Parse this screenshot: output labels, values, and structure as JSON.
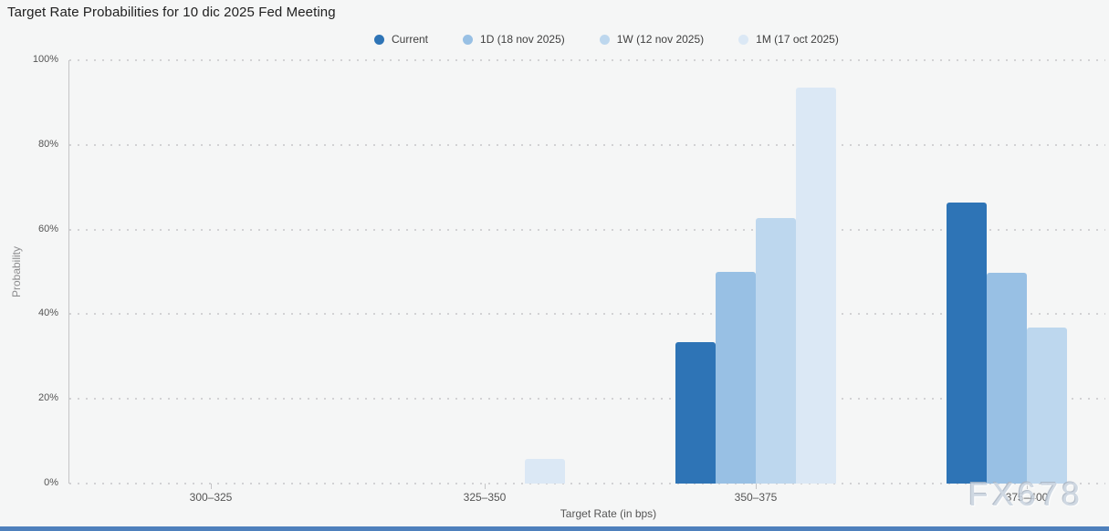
{
  "page": {
    "title": "Target Rate Probabilities for 10 dic 2025 Fed Meeting",
    "watermark": "FX678",
    "background": "#f5f6f6",
    "bottom_strip_color": "#4e80bc"
  },
  "legend": [
    {
      "label": "Current",
      "color": "#2e74b6"
    },
    {
      "label": "1D (18 nov 2025)",
      "color": "#98c0e4"
    },
    {
      "label": "1W (12 nov 2025)",
      "color": "#bdd7ee"
    },
    {
      "label": "1M (17 oct 2025)",
      "color": "#dbe8f5"
    }
  ],
  "chart_data": {
    "type": "bar",
    "title": "Target Rate Probabilities for 10 dic 2025 Fed Meeting",
    "categories": [
      "300–325",
      "325–350",
      "350–375",
      "375–400"
    ],
    "series": [
      {
        "name": "Current",
        "key": "current",
        "color": "#2e74b6",
        "values": [
          0,
          0,
          33.4,
          66.4
        ]
      },
      {
        "name": "1D (18 nov 2025)",
        "key": "1d",
        "color": "#98c0e4",
        "values": [
          0,
          0,
          50.1,
          49.7
        ]
      },
      {
        "name": "1W (12 nov 2025)",
        "key": "1w",
        "color": "#bdd7ee",
        "values": [
          0,
          0,
          62.7,
          36.9
        ]
      },
      {
        "name": "1M (17 oct 2025)",
        "key": "1m",
        "color": "#dbe8f5",
        "values": [
          0,
          5.8,
          93.5,
          0
        ]
      }
    ],
    "xlabel": "Target Rate (in bps)",
    "ylabel": "Probability",
    "ylim": [
      0,
      100
    ],
    "ytick_step": 20,
    "ytick_labels": [
      "0%",
      "20%",
      "40%",
      "60%",
      "80%",
      "100%"
    ],
    "grid": "dotted-horizontal",
    "legend_position": "top-center"
  }
}
